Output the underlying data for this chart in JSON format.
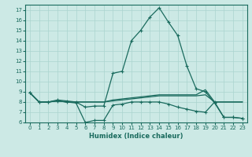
{
  "xlabel": "Humidex (Indice chaleur)",
  "xlim": [
    -0.5,
    23.5
  ],
  "ylim": [
    6,
    17.5
  ],
  "yticks": [
    6,
    7,
    8,
    9,
    10,
    11,
    12,
    13,
    14,
    15,
    16,
    17
  ],
  "xticks": [
    0,
    1,
    2,
    3,
    4,
    5,
    6,
    7,
    8,
    9,
    10,
    11,
    12,
    13,
    14,
    15,
    16,
    17,
    18,
    19,
    20,
    21,
    22,
    23
  ],
  "bg_color": "#cce9e5",
  "grid_color": "#aad4cf",
  "line_color": "#1a6b5e",
  "line1_x": [
    0,
    1,
    2,
    3,
    4,
    5,
    6,
    7,
    8,
    9,
    10,
    11,
    12,
    13,
    14,
    15,
    16,
    17,
    18,
    19,
    20,
    21,
    22,
    23
  ],
  "line1_y": [
    8.9,
    8.0,
    8.0,
    8.2,
    8.1,
    8.0,
    7.5,
    7.6,
    7.6,
    10.8,
    11.0,
    14.0,
    15.0,
    16.3,
    17.2,
    15.8,
    14.5,
    11.5,
    9.3,
    9.0,
    7.9,
    6.5,
    6.5,
    6.4
  ],
  "line2_x": [
    0,
    1,
    2,
    3,
    4,
    5,
    6,
    7,
    8,
    9,
    10,
    11,
    12,
    13,
    14,
    15,
    16,
    17,
    18,
    19,
    20,
    21,
    22,
    23
  ],
  "line2_y": [
    8.9,
    8.0,
    8.0,
    8.1,
    8.0,
    7.9,
    6.0,
    6.2,
    6.2,
    7.7,
    7.8,
    8.0,
    8.0,
    8.0,
    8.0,
    7.8,
    7.5,
    7.3,
    7.1,
    7.0,
    8.0,
    6.5,
    6.5,
    6.4
  ],
  "line3_x": [
    0,
    1,
    2,
    3,
    4,
    5,
    6,
    7,
    8,
    9,
    10,
    11,
    12,
    13,
    14,
    15,
    16,
    17,
    18,
    19,
    20,
    21,
    22,
    23
  ],
  "line3_y": [
    8.9,
    8.0,
    8.0,
    8.1,
    8.0,
    8.0,
    8.0,
    8.0,
    8.0,
    8.1,
    8.2,
    8.3,
    8.4,
    8.5,
    8.6,
    8.6,
    8.6,
    8.6,
    8.6,
    8.7,
    8.0,
    8.0,
    8.0,
    8.0
  ],
  "line4_x": [
    0,
    1,
    2,
    3,
    4,
    5,
    6,
    7,
    8,
    9,
    10,
    11,
    12,
    13,
    14,
    15,
    16,
    17,
    18,
    19,
    20,
    21,
    22,
    23
  ],
  "line4_y": [
    8.9,
    8.0,
    8.0,
    8.1,
    8.0,
    8.0,
    8.0,
    8.0,
    8.0,
    8.2,
    8.3,
    8.4,
    8.5,
    8.6,
    8.7,
    8.7,
    8.7,
    8.7,
    8.7,
    9.2,
    8.0,
    8.0,
    8.0,
    8.0
  ]
}
